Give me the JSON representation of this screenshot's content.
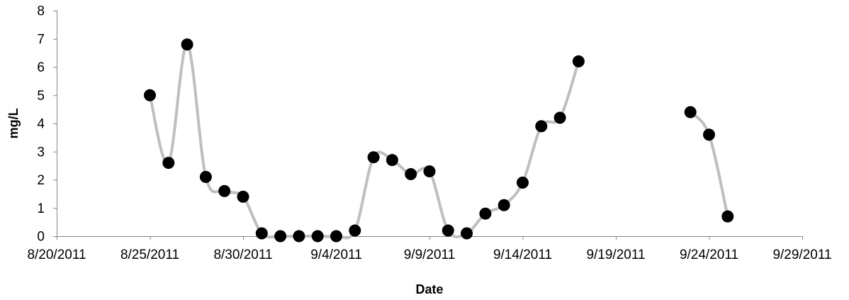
{
  "chart_data": {
    "type": "line",
    "title": "",
    "xlabel": "Date",
    "ylabel": "mg/L",
    "xlim": [
      "2011-08-20",
      "2011-09-29"
    ],
    "ylim": [
      0,
      8
    ],
    "x_tick_step_days": 5,
    "x_tick_labels": [
      "8/20/2011",
      "8/25/2011",
      "8/30/2011",
      "9/4/2011",
      "9/9/2011",
      "9/14/2011",
      "9/19/2011",
      "9/24/2011",
      "9/29/2011"
    ],
    "y_tick_labels": [
      "0",
      "1",
      "2",
      "3",
      "4",
      "5",
      "6",
      "7",
      "8"
    ],
    "grid": false,
    "legend": "none",
    "smooth_line": true,
    "series": [
      {
        "color": "#bfbfbf",
        "marker_color": "#000000",
        "segments": [
          [
            {
              "x": "2011-08-25",
              "y": 5.0
            },
            {
              "x": "2011-08-26",
              "y": 2.6
            },
            {
              "x": "2011-08-27",
              "y": 6.8
            },
            {
              "x": "2011-08-28",
              "y": 2.1
            },
            {
              "x": "2011-08-29",
              "y": 1.6
            },
            {
              "x": "2011-08-30",
              "y": 1.4
            },
            {
              "x": "2011-08-31",
              "y": 0.1
            },
            {
              "x": "2011-09-01",
              "y": 0.0
            },
            {
              "x": "2011-09-02",
              "y": 0.0
            },
            {
              "x": "2011-09-03",
              "y": 0.0
            },
            {
              "x": "2011-09-04",
              "y": 0.0
            },
            {
              "x": "2011-09-05",
              "y": 0.2
            },
            {
              "x": "2011-09-06",
              "y": 2.8
            },
            {
              "x": "2011-09-07",
              "y": 2.7
            },
            {
              "x": "2011-09-08",
              "y": 2.2
            },
            {
              "x": "2011-09-09",
              "y": 2.3
            },
            {
              "x": "2011-09-10",
              "y": 0.2
            },
            {
              "x": "2011-09-11",
              "y": 0.1
            },
            {
              "x": "2011-09-12",
              "y": 0.8
            },
            {
              "x": "2011-09-13",
              "y": 1.1
            },
            {
              "x": "2011-09-14",
              "y": 1.9
            },
            {
              "x": "2011-09-15",
              "y": 3.9
            },
            {
              "x": "2011-09-16",
              "y": 4.2
            },
            {
              "x": "2011-09-17",
              "y": 6.2
            }
          ],
          [
            {
              "x": "2011-09-23",
              "y": 4.4
            },
            {
              "x": "2011-09-24",
              "y": 3.6
            },
            {
              "x": "2011-09-25",
              "y": 0.7
            }
          ]
        ]
      }
    ]
  }
}
